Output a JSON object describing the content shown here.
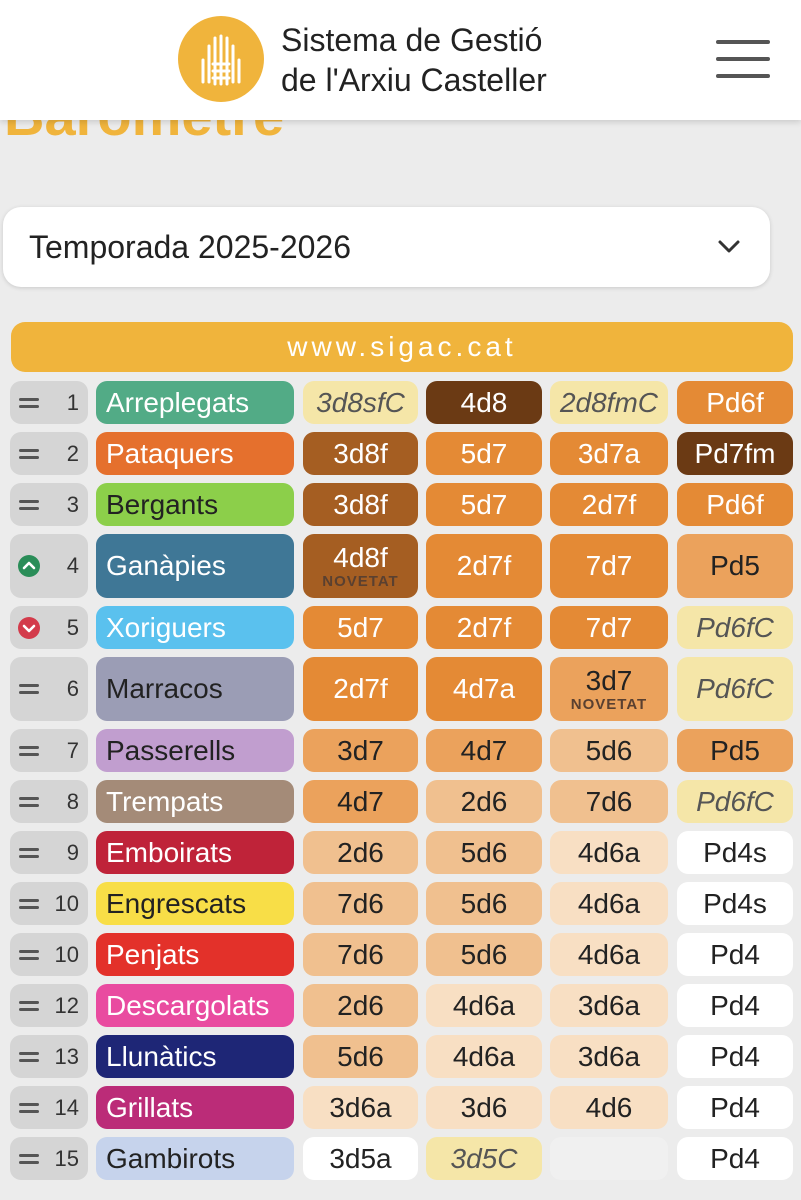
{
  "page": {
    "title_partial": "Baròmetre"
  },
  "header": {
    "title_line1": "Sistema de Gestió",
    "title_line2": "de l'Arxiu Casteller",
    "logo_icon": "sigac-castle-logo-icon",
    "menu_icon": "hamburger-menu-icon"
  },
  "season_select": {
    "value": "Temporada 2025-2026",
    "icon": "chevron-down-icon"
  },
  "banner": {
    "text": "www.sigac.cat"
  },
  "colors": {
    "brand": "#f0b43c",
    "tier_dark_brown": "#6b3a14",
    "tier_brown": "#a55e22",
    "tier_orange": "#e48a35",
    "tier_light_orange": "#eba25c",
    "tier_peach": "#f0c08f",
    "tier_light_peach": "#f8dfc3",
    "tier_pale_yellow": "#f5e6a8",
    "tier_white": "#ffffff",
    "trend_up": "#2a8d58",
    "trend_down": "#d33b4b"
  },
  "rows": [
    {
      "rank": "1",
      "trend": "same",
      "team": "Arreplegats",
      "team_bg": "#52ab86",
      "team_fg": "#ffffff",
      "castells": [
        {
          "v": "3d8sfC",
          "bg": "#f5e6a8",
          "fg": "#555555",
          "italic": true
        },
        {
          "v": "4d8",
          "bg": "#6b3a14",
          "fg": "#ffffff"
        },
        {
          "v": "2d8fmC",
          "bg": "#f5e6a8",
          "fg": "#555555",
          "italic": true
        },
        {
          "v": "Pd6f",
          "bg": "#e48a35",
          "fg": "#ffffff"
        }
      ]
    },
    {
      "rank": "2",
      "trend": "same",
      "team": "Pataquers",
      "team_bg": "#e5702d",
      "team_fg": "#ffffff",
      "castells": [
        {
          "v": "3d8f",
          "bg": "#a55e22",
          "fg": "#ffffff"
        },
        {
          "v": "5d7",
          "bg": "#e48a35",
          "fg": "#ffffff"
        },
        {
          "v": "3d7a",
          "bg": "#e48a35",
          "fg": "#ffffff"
        },
        {
          "v": "Pd7fm",
          "bg": "#6b3a14",
          "fg": "#ffffff"
        }
      ]
    },
    {
      "rank": "3",
      "trend": "same",
      "team": "Bergants",
      "team_bg": "#8ccf4a",
      "team_fg": "#222222",
      "castells": [
        {
          "v": "3d8f",
          "bg": "#a55e22",
          "fg": "#ffffff"
        },
        {
          "v": "5d7",
          "bg": "#e48a35",
          "fg": "#ffffff"
        },
        {
          "v": "2d7f",
          "bg": "#e48a35",
          "fg": "#ffffff"
        },
        {
          "v": "Pd6f",
          "bg": "#e48a35",
          "fg": "#ffffff"
        }
      ]
    },
    {
      "rank": "4",
      "trend": "up",
      "team": "Ganàpies",
      "team_bg": "#3f7796",
      "team_fg": "#ffffff",
      "castells": [
        {
          "v": "4d8f",
          "bg": "#a55e22",
          "fg": "#ffffff",
          "novetat": "NOVETAT"
        },
        {
          "v": "2d7f",
          "bg": "#e48a35",
          "fg": "#ffffff"
        },
        {
          "v": "7d7",
          "bg": "#e48a35",
          "fg": "#ffffff"
        },
        {
          "v": "Pd5",
          "bg": "#eba25c",
          "fg": "#222222"
        }
      ]
    },
    {
      "rank": "5",
      "trend": "down",
      "team": "Xoriguers",
      "team_bg": "#5ac1ee",
      "team_fg": "#ffffff",
      "castells": [
        {
          "v": "5d7",
          "bg": "#e48a35",
          "fg": "#ffffff"
        },
        {
          "v": "2d7f",
          "bg": "#e48a35",
          "fg": "#ffffff"
        },
        {
          "v": "7d7",
          "bg": "#e48a35",
          "fg": "#ffffff"
        },
        {
          "v": "Pd6fC",
          "bg": "#f5e6a8",
          "fg": "#555555",
          "italic": true
        }
      ]
    },
    {
      "rank": "6",
      "trend": "same",
      "team": "Marracos",
      "team_bg": "#9b9db5",
      "team_fg": "#222222",
      "castells": [
        {
          "v": "2d7f",
          "bg": "#e48a35",
          "fg": "#ffffff"
        },
        {
          "v": "4d7a",
          "bg": "#e48a35",
          "fg": "#ffffff"
        },
        {
          "v": "3d7",
          "bg": "#eba25c",
          "fg": "#222222",
          "novetat": "NOVETAT"
        },
        {
          "v": "Pd6fC",
          "bg": "#f5e6a8",
          "fg": "#555555",
          "italic": true
        }
      ]
    },
    {
      "rank": "7",
      "trend": "same",
      "team": "Passerells",
      "team_bg": "#c19ecf",
      "team_fg": "#222222",
      "castells": [
        {
          "v": "3d7",
          "bg": "#eba25c",
          "fg": "#222222"
        },
        {
          "v": "4d7",
          "bg": "#eba25c",
          "fg": "#222222"
        },
        {
          "v": "5d6",
          "bg": "#f0c08f",
          "fg": "#222222"
        },
        {
          "v": "Pd5",
          "bg": "#eba25c",
          "fg": "#222222"
        }
      ]
    },
    {
      "rank": "8",
      "trend": "same",
      "team": "Trempats",
      "team_bg": "#a48b78",
      "team_fg": "#ffffff",
      "castells": [
        {
          "v": "4d7",
          "bg": "#eba25c",
          "fg": "#222222"
        },
        {
          "v": "2d6",
          "bg": "#f0c08f",
          "fg": "#222222"
        },
        {
          "v": "7d6",
          "bg": "#f0c08f",
          "fg": "#222222"
        },
        {
          "v": "Pd6fC",
          "bg": "#f5e6a8",
          "fg": "#555555",
          "italic": true
        }
      ]
    },
    {
      "rank": "9",
      "trend": "same",
      "team": "Emboirats",
      "team_bg": "#bf2339",
      "team_fg": "#ffffff",
      "castells": [
        {
          "v": "2d6",
          "bg": "#f0c08f",
          "fg": "#222222"
        },
        {
          "v": "5d6",
          "bg": "#f0c08f",
          "fg": "#222222"
        },
        {
          "v": "4d6a",
          "bg": "#f8dfc3",
          "fg": "#222222"
        },
        {
          "v": "Pd4s",
          "bg": "#ffffff",
          "fg": "#222222"
        }
      ]
    },
    {
      "rank": "10",
      "trend": "same",
      "team": "Engrescats",
      "team_bg": "#f8de47",
      "team_fg": "#222222",
      "castells": [
        {
          "v": "7d6",
          "bg": "#f0c08f",
          "fg": "#222222"
        },
        {
          "v": "5d6",
          "bg": "#f0c08f",
          "fg": "#222222"
        },
        {
          "v": "4d6a",
          "bg": "#f8dfc3",
          "fg": "#222222"
        },
        {
          "v": "Pd4s",
          "bg": "#ffffff",
          "fg": "#222222"
        }
      ]
    },
    {
      "rank": "10",
      "trend": "same",
      "team": "Penjats",
      "team_bg": "#e3312a",
      "team_fg": "#ffffff",
      "castells": [
        {
          "v": "7d6",
          "bg": "#f0c08f",
          "fg": "#222222"
        },
        {
          "v": "5d6",
          "bg": "#f0c08f",
          "fg": "#222222"
        },
        {
          "v": "4d6a",
          "bg": "#f8dfc3",
          "fg": "#222222"
        },
        {
          "v": "Pd4",
          "bg": "#ffffff",
          "fg": "#222222"
        }
      ]
    },
    {
      "rank": "12",
      "trend": "same",
      "team": "Descargolats",
      "team_bg": "#e94ba0",
      "team_fg": "#ffffff",
      "castells": [
        {
          "v": "2d6",
          "bg": "#f0c08f",
          "fg": "#222222"
        },
        {
          "v": "4d6a",
          "bg": "#f8dfc3",
          "fg": "#222222"
        },
        {
          "v": "3d6a",
          "bg": "#f8dfc3",
          "fg": "#222222"
        },
        {
          "v": "Pd4",
          "bg": "#ffffff",
          "fg": "#222222"
        }
      ]
    },
    {
      "rank": "13",
      "trend": "same",
      "team": "Llunàtics",
      "team_bg": "#1e2676",
      "team_fg": "#ffffff",
      "castells": [
        {
          "v": "5d6",
          "bg": "#f0c08f",
          "fg": "#222222"
        },
        {
          "v": "4d6a",
          "bg": "#f8dfc3",
          "fg": "#222222"
        },
        {
          "v": "3d6a",
          "bg": "#f8dfc3",
          "fg": "#222222"
        },
        {
          "v": "Pd4",
          "bg": "#ffffff",
          "fg": "#222222"
        }
      ]
    },
    {
      "rank": "14",
      "trend": "same",
      "team": "Grillats",
      "team_bg": "#bb2c78",
      "team_fg": "#ffffff",
      "castells": [
        {
          "v": "3d6a",
          "bg": "#f8dfc3",
          "fg": "#222222"
        },
        {
          "v": "3d6",
          "bg": "#f8dfc3",
          "fg": "#222222"
        },
        {
          "v": "4d6",
          "bg": "#f8dfc3",
          "fg": "#222222"
        },
        {
          "v": "Pd4",
          "bg": "#ffffff",
          "fg": "#222222"
        }
      ]
    },
    {
      "rank": "15",
      "trend": "same",
      "team": "Gambirots",
      "team_bg": "#c6d3ec",
      "team_fg": "#222222",
      "castells": [
        {
          "v": "3d5a",
          "bg": "#ffffff",
          "fg": "#222222"
        },
        {
          "v": "3d5C",
          "bg": "#f5e6a8",
          "fg": "#555555",
          "italic": true
        },
        {
          "v": "",
          "bg": "#f0f0f0",
          "fg": "#222222"
        },
        {
          "v": "Pd4",
          "bg": "#ffffff",
          "fg": "#222222"
        }
      ]
    }
  ]
}
